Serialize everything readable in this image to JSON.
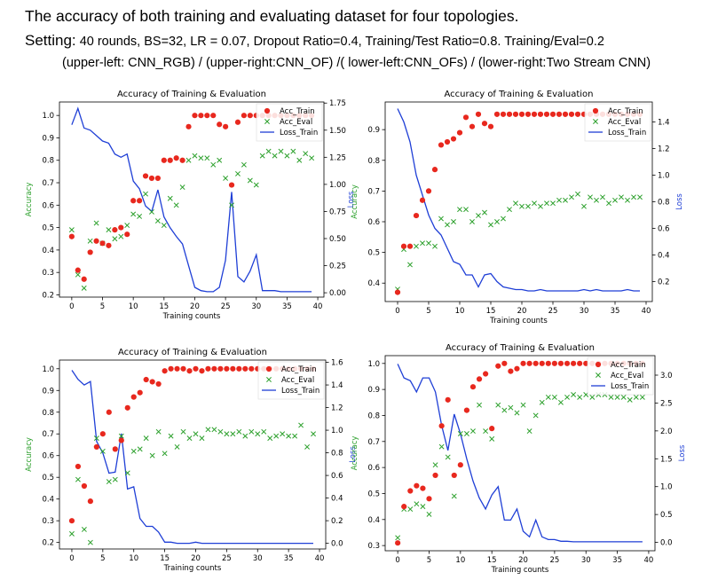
{
  "header": {
    "title": "The accuracy of both training and evaluating dataset for four topologies.",
    "setting_label": "Setting:",
    "setting_text": "40 rounds, BS=32, LR = 0.07, Dropout Ratio=0.4, Training/Test Ratio=0.8. Training/Eval=0.2",
    "panels_text": "(upper-left: CNN_RGB) / (upper-right:CNN_OF) /( lower-left:CNN_OFs) / (lower-right:Two Stream CNN)"
  },
  "colors": {
    "train": "#e8281e",
    "eval": "#2ca02c",
    "loss": "#1f3fd6",
    "ylabel_left": "#2ca02c",
    "ylabel_right": "#1f3fd6"
  },
  "chart_data": [
    {
      "type": "scatter+line",
      "title": "Accuracy of Training & Evaluation",
      "xlabel": "Training counts",
      "ylabel": "Accuracy",
      "y2label": "Loss",
      "xlim": [
        -2,
        41
      ],
      "ylim": [
        0.19,
        1.06
      ],
      "y2lim": [
        -0.04,
        1.76
      ],
      "xticks": [
        0,
        5,
        10,
        15,
        20,
        25,
        30,
        35,
        40
      ],
      "yticks": [
        0.2,
        0.3,
        0.4,
        0.5,
        0.6,
        0.7,
        0.8,
        0.9,
        1.0
      ],
      "y2ticks": [
        0.0,
        0.25,
        0.5,
        0.75,
        1.0,
        1.25,
        1.5,
        1.75
      ],
      "legend": [
        "Acc_Train",
        "Acc_Eval",
        "Loss_Train"
      ],
      "legend_loc": "top-right",
      "acc_train": [
        0.46,
        0.31,
        0.27,
        0.39,
        0.44,
        0.43,
        0.42,
        0.49,
        0.5,
        0.47,
        0.62,
        0.62,
        0.73,
        0.72,
        0.72,
        0.8,
        0.8,
        0.81,
        0.8,
        0.95,
        1.0,
        1.0,
        1.0,
        1.0,
        0.96,
        0.95,
        0.69,
        0.97,
        1.0,
        1.0,
        1.0,
        1.0,
        1.0,
        1.0,
        1.0,
        1.0,
        1.0,
        1.0,
        1.0,
        1.0
      ],
      "acc_eval": [
        0.49,
        0.29,
        0.23,
        0.44,
        0.52,
        0.43,
        0.49,
        0.45,
        0.46,
        0.51,
        0.56,
        0.55,
        0.65,
        0.57,
        0.53,
        0.51,
        0.63,
        0.6,
        0.68,
        0.8,
        0.82,
        0.81,
        0.81,
        0.78,
        0.8,
        0.72,
        0.6,
        0.74,
        0.78,
        0.71,
        0.69,
        0.82,
        0.84,
        0.82,
        0.84,
        0.82,
        0.84,
        0.8,
        0.83,
        0.81
      ],
      "loss_train": [
        1.55,
        1.7,
        1.52,
        1.5,
        1.45,
        1.4,
        1.38,
        1.28,
        1.25,
        1.28,
        1.03,
        0.96,
        0.8,
        0.75,
        0.95,
        0.7,
        0.6,
        0.52,
        0.45,
        0.25,
        0.05,
        0.02,
        0.01,
        0.01,
        0.05,
        0.3,
        0.93,
        0.15,
        0.1,
        0.2,
        0.35,
        0.02,
        0.02,
        0.02,
        0.01,
        0.01,
        0.01,
        0.01,
        0.01,
        0.01
      ]
    },
    {
      "type": "scatter+line",
      "title": "Accuracy of Training & Evaluation",
      "xlabel": "Training counts",
      "ylabel": "Accuracy",
      "y2label": "Loss",
      "xlim": [
        -2,
        41
      ],
      "ylim": [
        0.34,
        0.99
      ],
      "y2lim": [
        0.05,
        1.55
      ],
      "xticks": [
        0,
        5,
        10,
        15,
        20,
        25,
        30,
        35,
        40
      ],
      "yticks": [
        0.4,
        0.5,
        0.6,
        0.7,
        0.8,
        0.9
      ],
      "y2ticks": [
        0.2,
        0.4,
        0.6,
        0.8,
        1.0,
        1.2,
        1.4
      ],
      "legend": [
        "Acc_Train",
        "Acc_Eval",
        "Loss_Train"
      ],
      "legend_loc": "top-right",
      "acc_train": [
        0.37,
        0.52,
        0.52,
        0.62,
        0.67,
        0.7,
        0.77,
        0.85,
        0.86,
        0.87,
        0.89,
        0.94,
        0.91,
        0.95,
        0.92,
        0.91,
        0.95,
        0.95,
        0.95,
        0.95,
        0.95,
        0.95,
        0.95,
        0.95,
        0.95,
        0.95,
        0.95,
        0.95,
        0.95,
        0.95,
        0.95,
        0.95,
        0.95,
        0.95,
        0.95,
        0.95,
        0.95,
        0.95,
        0.95,
        0.95
      ],
      "acc_eval": [
        0.38,
        0.51,
        0.46,
        0.52,
        0.53,
        0.53,
        0.52,
        0.61,
        0.59,
        0.6,
        0.64,
        0.64,
        0.6,
        0.62,
        0.63,
        0.59,
        0.6,
        0.61,
        0.64,
        0.66,
        0.65,
        0.65,
        0.66,
        0.65,
        0.66,
        0.66,
        0.67,
        0.67,
        0.68,
        0.69,
        0.65,
        0.68,
        0.67,
        0.68,
        0.66,
        0.67,
        0.68,
        0.67,
        0.68,
        0.68
      ],
      "loss_train": [
        1.5,
        1.4,
        1.25,
        1.0,
        0.85,
        0.7,
        0.6,
        0.55,
        0.45,
        0.35,
        0.33,
        0.25,
        0.25,
        0.16,
        0.25,
        0.26,
        0.2,
        0.16,
        0.15,
        0.14,
        0.14,
        0.13,
        0.13,
        0.14,
        0.13,
        0.13,
        0.13,
        0.13,
        0.13,
        0.13,
        0.14,
        0.13,
        0.14,
        0.13,
        0.13,
        0.13,
        0.13,
        0.14,
        0.13,
        0.13
      ]
    },
    {
      "type": "scatter+line",
      "title": "Accuracy of Training & Evaluation",
      "xlabel": "Training counts",
      "ylabel": "Accuracy",
      "y2label": "Loss",
      "xlim": [
        -2,
        41
      ],
      "ylim": [
        0.17,
        1.04
      ],
      "y2lim": [
        -0.05,
        1.62
      ],
      "xticks": [
        0,
        5,
        10,
        15,
        20,
        25,
        30,
        35,
        40
      ],
      "yticks": [
        0.2,
        0.3,
        0.4,
        0.5,
        0.6,
        0.7,
        0.8,
        0.9,
        1.0
      ],
      "y2ticks": [
        0.0,
        0.2,
        0.4,
        0.6,
        0.8,
        1.0,
        1.2,
        1.4,
        1.6
      ],
      "legend": [
        "Acc_Train",
        "Acc_Eval",
        "Loss_Train"
      ],
      "legend_loc": "top-right",
      "acc_train": [
        0.3,
        0.55,
        0.46,
        0.39,
        0.64,
        0.7,
        0.8,
        0.63,
        0.67,
        0.82,
        0.87,
        0.89,
        0.95,
        0.94,
        0.93,
        0.99,
        1.0,
        1.0,
        1.0,
        0.99,
        1.0,
        0.99,
        1.0,
        1.0,
        1.0,
        1.0,
        1.0,
        1.0,
        1.0,
        1.0,
        1.0,
        1.0,
        1.0,
        1.0,
        1.0,
        1.0,
        1.0,
        1.0,
        1.0,
        1.0
      ],
      "acc_eval": [
        0.24,
        0.49,
        0.26,
        0.2,
        0.68,
        0.62,
        0.48,
        0.49,
        0.69,
        0.52,
        0.62,
        0.63,
        0.68,
        0.6,
        0.71,
        0.61,
        0.69,
        0.64,
        0.71,
        0.68,
        0.7,
        0.68,
        0.72,
        0.72,
        0.71,
        0.7,
        0.7,
        0.71,
        0.69,
        0.71,
        0.7,
        0.71,
        0.68,
        0.69,
        0.7,
        0.69,
        0.69,
        0.74,
        0.64,
        0.7
      ],
      "loss_train": [
        1.53,
        1.45,
        1.4,
        1.43,
        0.9,
        0.8,
        0.62,
        0.63,
        0.97,
        0.48,
        0.5,
        0.22,
        0.15,
        0.15,
        0.1,
        0.01,
        0.01,
        0.0,
        0.0,
        0.0,
        0.01,
        0.0,
        0.0,
        0.0,
        0.0,
        0.0,
        0.0,
        0.0,
        0.0,
        0.0,
        0.0,
        0.0,
        0.0,
        0.0,
        0.0,
        0.0,
        0.0,
        0.0,
        0.0,
        0.0
      ]
    },
    {
      "type": "scatter+line",
      "title": "Accuracy of Training & Evaluation",
      "xlabel": "Training counts",
      "ylabel": "Accuracy",
      "y2label": "Loss",
      "xlim": [
        -2,
        41
      ],
      "ylim": [
        0.28,
        1.03
      ],
      "y2lim": [
        -0.15,
        3.35
      ],
      "xticks": [
        0,
        5,
        10,
        15,
        20,
        25,
        30,
        35,
        40
      ],
      "yticks": [
        0.3,
        0.4,
        0.5,
        0.6,
        0.7,
        0.8,
        0.9,
        1.0
      ],
      "y2ticks": [
        0.0,
        0.5,
        1.0,
        1.5,
        2.0,
        2.5,
        3.0
      ],
      "legend": [
        "Acc_Train",
        "Acc_Eval",
        "Loss_Train"
      ],
      "legend_loc": "top-right",
      "acc_train": [
        0.31,
        0.45,
        0.51,
        0.53,
        0.52,
        0.48,
        0.57,
        0.76,
        0.86,
        0.57,
        0.61,
        0.82,
        0.91,
        0.94,
        0.96,
        0.75,
        0.99,
        1.0,
        0.97,
        0.98,
        1.0,
        1.0,
        1.0,
        1.0,
        1.0,
        1.0,
        1.0,
        1.0,
        1.0,
        1.0,
        1.0,
        1.0,
        1.0,
        1.0,
        1.0,
        1.0,
        1.0,
        1.0,
        1.0,
        1.0
      ],
      "acc_eval": [
        0.33,
        0.44,
        0.44,
        0.46,
        0.45,
        0.42,
        0.61,
        0.68,
        0.64,
        0.49,
        0.73,
        0.73,
        0.74,
        0.84,
        0.74,
        0.71,
        0.84,
        0.82,
        0.83,
        0.81,
        0.84,
        0.74,
        0.8,
        0.85,
        0.87,
        0.87,
        0.85,
        0.87,
        0.88,
        0.87,
        0.88,
        0.87,
        0.88,
        0.88,
        0.87,
        0.87,
        0.87,
        0.86,
        0.87,
        0.87
      ],
      "loss_train": [
        3.2,
        2.95,
        2.9,
        2.7,
        2.95,
        2.95,
        2.7,
        2.1,
        1.65,
        2.3,
        1.95,
        1.5,
        1.1,
        0.8,
        0.6,
        0.85,
        1.0,
        0.4,
        0.4,
        0.6,
        0.2,
        0.1,
        0.4,
        0.1,
        0.05,
        0.05,
        0.02,
        0.02,
        0.01,
        0.01,
        0.01,
        0.01,
        0.01,
        0.01,
        0.01,
        0.01,
        0.01,
        0.01,
        0.01,
        0.01
      ]
    }
  ]
}
